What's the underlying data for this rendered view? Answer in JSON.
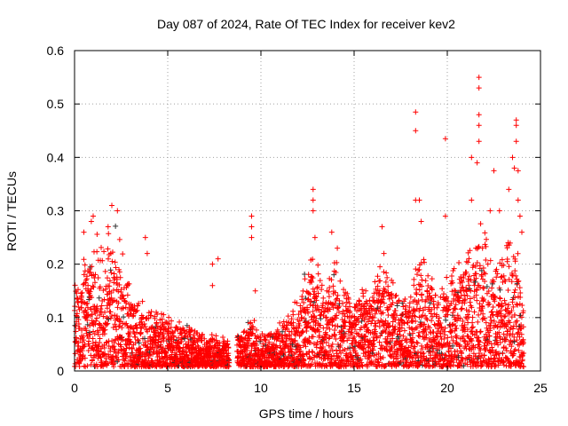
{
  "chart_data": {
    "type": "scatter",
    "title": "Day 087 of 2024, Rate Of TEC Index for receiver kev2",
    "xlabel": "GPS time / hours",
    "ylabel": "ROTI / TECUs",
    "xlim": [
      0,
      25
    ],
    "ylim": [
      0,
      0.6
    ],
    "xticks": [
      "0",
      "5",
      "10",
      "15",
      "20",
      "25"
    ],
    "yticks": [
      "0",
      "0.1",
      "0.2",
      "0.3",
      "0.4",
      "0.5",
      "0.6"
    ],
    "xtick_values": [
      0,
      5,
      10,
      15,
      20,
      25
    ],
    "ytick_values": [
      0,
      0.1,
      0.2,
      0.3,
      0.4,
      0.5,
      0.6
    ],
    "grid": true,
    "marker": "+",
    "series_color": "#ff0000",
    "secondary_color": "#333333",
    "data_range_hours": [
      0,
      24.1
    ],
    "gap_hours": [
      8.3,
      8.7
    ],
    "density_envelope": {
      "x": [
        0,
        0.5,
        1,
        1.5,
        2,
        2.5,
        3,
        3.5,
        4,
        4.5,
        5,
        5.5,
        6,
        6.5,
        7,
        7.5,
        8,
        8.3,
        8.7,
        9,
        9.5,
        10,
        10.5,
        11,
        11.5,
        12,
        12.5,
        13,
        13.5,
        14,
        14.5,
        15,
        15.5,
        16,
        16.5,
        17,
        17.5,
        18,
        18.5,
        19,
        19.5,
        20,
        20.5,
        21,
        21.5,
        22,
        22.5,
        23,
        23.5,
        24,
        24.1
      ],
      "y_max": [
        0.15,
        0.2,
        0.22,
        0.22,
        0.25,
        0.2,
        0.15,
        0.12,
        0.1,
        0.11,
        0.09,
        0.08,
        0.08,
        0.07,
        0.06,
        0.06,
        0.06,
        0.05,
        0.07,
        0.06,
        0.1,
        0.06,
        0.07,
        0.08,
        0.1,
        0.12,
        0.18,
        0.18,
        0.15,
        0.18,
        0.15,
        0.12,
        0.15,
        0.15,
        0.18,
        0.16,
        0.12,
        0.15,
        0.2,
        0.18,
        0.15,
        0.17,
        0.18,
        0.2,
        0.22,
        0.25,
        0.2,
        0.22,
        0.25,
        0.15,
        0.1
      ]
    },
    "outliers": [
      [
        0.5,
        0.26
      ],
      [
        1.0,
        0.29
      ],
      [
        0.9,
        0.28
      ],
      [
        2.0,
        0.31
      ],
      [
        2.3,
        0.3
      ],
      [
        1.8,
        0.27
      ],
      [
        3.8,
        0.25
      ],
      [
        3.9,
        0.22
      ],
      [
        7.4,
        0.2
      ],
      [
        7.7,
        0.21
      ],
      [
        7.4,
        0.16
      ],
      [
        9.5,
        0.29
      ],
      [
        9.5,
        0.27
      ],
      [
        9.5,
        0.25
      ],
      [
        9.7,
        0.15
      ],
      [
        12.8,
        0.34
      ],
      [
        12.8,
        0.32
      ],
      [
        12.8,
        0.3
      ],
      [
        12.9,
        0.25
      ],
      [
        13.8,
        0.26
      ],
      [
        14.1,
        0.23
      ],
      [
        16.5,
        0.27
      ],
      [
        16.6,
        0.22
      ],
      [
        18.3,
        0.485
      ],
      [
        18.3,
        0.45
      ],
      [
        18.3,
        0.32
      ],
      [
        18.5,
        0.32
      ],
      [
        18.6,
        0.28
      ],
      [
        19.9,
        0.435
      ],
      [
        19.9,
        0.29
      ],
      [
        21.3,
        0.4
      ],
      [
        21.3,
        0.32
      ],
      [
        21.7,
        0.55
      ],
      [
        21.7,
        0.53
      ],
      [
        21.7,
        0.48
      ],
      [
        21.7,
        0.46
      ],
      [
        21.7,
        0.43
      ],
      [
        21.6,
        0.39
      ],
      [
        22.3,
        0.3
      ],
      [
        22.5,
        0.375
      ],
      [
        22.8,
        0.3
      ],
      [
        23.3,
        0.34
      ],
      [
        23.5,
        0.4
      ],
      [
        23.6,
        0.38
      ],
      [
        23.7,
        0.47
      ],
      [
        23.7,
        0.46
      ],
      [
        23.7,
        0.43
      ],
      [
        23.8,
        0.375
      ],
      [
        23.8,
        0.32
      ],
      [
        24.0,
        0.26
      ],
      [
        23.9,
        0.29
      ]
    ]
  }
}
